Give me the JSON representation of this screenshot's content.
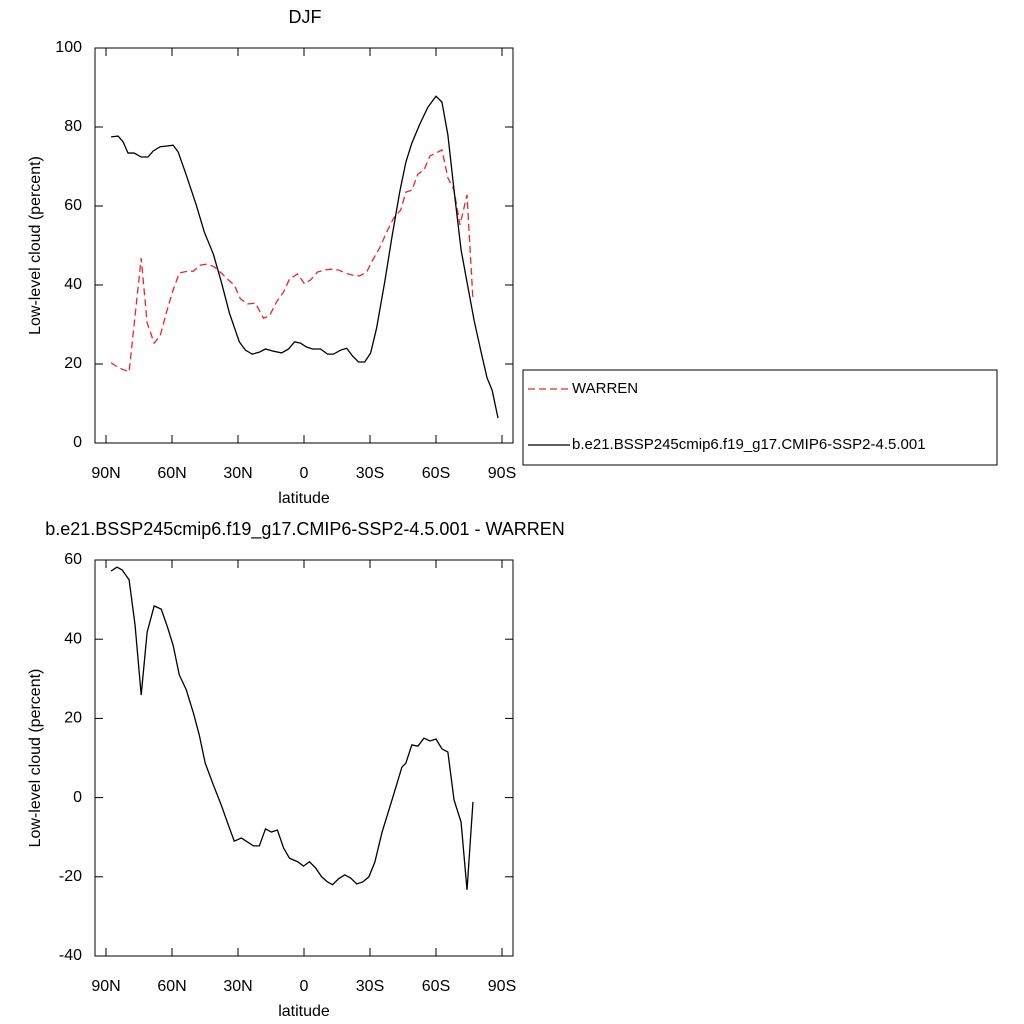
{
  "chart_data": [
    {
      "type": "line",
      "title": "DJF",
      "xlabel": "latitude",
      "ylabel": "Low-level cloud (percent)",
      "xlim": [
        95,
        -95
      ],
      "xticks": [
        {
          "value": 90,
          "label": "90N"
        },
        {
          "value": 60,
          "label": "60N"
        },
        {
          "value": 30,
          "label": "30N"
        },
        0,
        {
          "value": -30,
          "label": "30S"
        },
        {
          "value": -60,
          "label": "60S"
        },
        {
          "value": -90,
          "label": "90S"
        }
      ],
      "ylim": [
        0,
        100
      ],
      "yticks": [
        0,
        20,
        40,
        60,
        80,
        100
      ],
      "legend": "right",
      "series": [
        {
          "name": "WARREN",
          "color": "#e8262b",
          "dashed": true,
          "x": [
            87.7,
            84.1,
            79.5,
            74,
            71.3,
            68.1,
            65.4,
            62.2,
            59.5,
            56.7,
            53.1,
            50.3,
            47.2,
            44,
            40.8,
            37.6,
            34.4,
            31.7,
            28.9,
            25.7,
            22.1,
            18.4,
            15.7,
            12.5,
            9.3,
            6.6,
            2.9,
            -0.2,
            -3,
            -6.2,
            -9.3,
            -12.5,
            -15.7,
            -18.9,
            -22.1,
            -25.3,
            -28.5,
            -31.2,
            -34.4,
            -37.6,
            -40.8,
            -44,
            -46.3,
            -49,
            -51.8,
            -54.5,
            -57.3,
            -60,
            -62.7,
            -65.4,
            -68.2,
            -70.9,
            -74.1,
            -76.8
          ],
          "values": [
            20.3,
            19,
            18,
            46.8,
            30.4,
            25.3,
            27.1,
            33.7,
            38.7,
            43,
            43.5,
            43.5,
            45,
            45.3,
            44.6,
            43,
            41.3,
            40,
            36.5,
            35.2,
            35.4,
            31.6,
            32.2,
            35.7,
            38.2,
            41.5,
            42.8,
            40.3,
            41.3,
            43.3,
            43.8,
            44,
            43.8,
            43,
            42.5,
            42.3,
            43.3,
            46.3,
            49.4,
            53.4,
            57,
            59,
            63.5,
            64,
            68.1,
            69.1,
            72.7,
            73.4,
            74.2,
            67.1,
            64,
            55.2,
            62.8,
            36.2
          ]
        },
        {
          "name": "b.e21.BSSP245cmip6.f19_g17.CMIP6-SSP2-4.5.001",
          "color": "#000000",
          "dashed": false,
          "x": [
            87.7,
            84.5,
            82.2,
            80,
            77.2,
            74,
            70.9,
            68.6,
            65.4,
            62.2,
            59.5,
            57.2,
            53.5,
            49,
            45.3,
            41.2,
            37.6,
            33.9,
            29.4,
            26.6,
            23.5,
            20.3,
            17.5,
            14.3,
            10.2,
            7,
            4.3,
            1.6,
            -1.1,
            -3.9,
            -7.5,
            -10.7,
            -13.4,
            -16.6,
            -19.4,
            -22.1,
            -24.8,
            -27.6,
            -30.3,
            -33,
            -36.7,
            -39.9,
            -43.5,
            -46.3,
            -49,
            -52.7,
            -56.3,
            -60,
            -62.7,
            -65.4,
            -68.2,
            -71.4,
            -74.6,
            -77.3,
            -80.5,
            -83.2,
            -85.5,
            -88.2
          ],
          "values": [
            77.5,
            77.7,
            76.2,
            73.4,
            73.4,
            72.4,
            72.4,
            73.9,
            75,
            75.2,
            75.4,
            73.7,
            67.8,
            60.3,
            53.4,
            47.8,
            40.8,
            32.9,
            25.6,
            23.5,
            22.5,
            23,
            23.8,
            23.3,
            22.8,
            23.8,
            25.6,
            25.3,
            24.3,
            23.8,
            23.8,
            22.5,
            22.5,
            23.5,
            24,
            22,
            20.5,
            20.5,
            22.8,
            29.1,
            40.8,
            51.9,
            63.5,
            71.1,
            75.9,
            80.8,
            85,
            87.8,
            86.3,
            78,
            64,
            48.9,
            39.2,
            31.1,
            23,
            16.5,
            13.4,
            6.3
          ]
        }
      ]
    },
    {
      "type": "line",
      "title": "b.e21.BSSP245cmip6.f19_g17.CMIP6-SSP2-4.5.001 - WARREN",
      "xlabel": "latitude",
      "ylabel": "Low-level cloud (percent)",
      "xlim": [
        95,
        -95
      ],
      "xticks": [
        {
          "value": 90,
          "label": "90N"
        },
        {
          "value": 60,
          "label": "60N"
        },
        {
          "value": 30,
          "label": "30N"
        },
        0,
        {
          "value": -30,
          "label": "30S"
        },
        {
          "value": -60,
          "label": "60S"
        },
        {
          "value": -90,
          "label": "90S"
        }
      ],
      "ylim": [
        -40,
        60
      ],
      "yticks": [
        -40,
        -20,
        0,
        20,
        40,
        60
      ],
      "series": [
        {
          "color": "#000000",
          "dashed": false,
          "x": [
            87.7,
            85,
            82.7,
            79.5,
            76.8,
            74,
            71.3,
            68.1,
            64.9,
            62.2,
            59.5,
            56.7,
            53.5,
            50.3,
            47.6,
            44.9,
            41.2,
            37.6,
            34.4,
            31.7,
            28.5,
            25.7,
            23,
            20.3,
            17.5,
            14.8,
            12.1,
            9.3,
            6.6,
            2.9,
            0.2,
            -2.5,
            -5.3,
            -8,
            -10.7,
            -13,
            -15.7,
            -18.5,
            -21.2,
            -24,
            -26.7,
            -29.5,
            -32.2,
            -35.4,
            -38.6,
            -41.8,
            -44.5,
            -46.3,
            -49,
            -51.8,
            -54.5,
            -57.3,
            -60,
            -62.7,
            -65.4,
            -68.2,
            -71.4,
            -74.1,
            -76.8
          ],
          "values": [
            57.2,
            58.2,
            57.5,
            55,
            43.6,
            25.9,
            41.8,
            48.4,
            47.6,
            43.3,
            38.5,
            31,
            27.2,
            21.4,
            15.8,
            8.7,
            3.2,
            -1.9,
            -6.9,
            -11,
            -10.2,
            -11.2,
            -12.2,
            -12.2,
            -7.9,
            -8.7,
            -8.2,
            -12.7,
            -15.3,
            -16.2,
            -17.3,
            -16.2,
            -17.8,
            -20,
            -21.3,
            -22,
            -20.5,
            -19.5,
            -20.3,
            -21.8,
            -21.3,
            -20,
            -16.3,
            -8.9,
            -3.1,
            2.7,
            7.7,
            8.7,
            13.3,
            13,
            15,
            14.3,
            14.8,
            12.3,
            11.5,
            -0.6,
            -6.2,
            -23.3,
            -1.1
          ]
        }
      ]
    }
  ]
}
